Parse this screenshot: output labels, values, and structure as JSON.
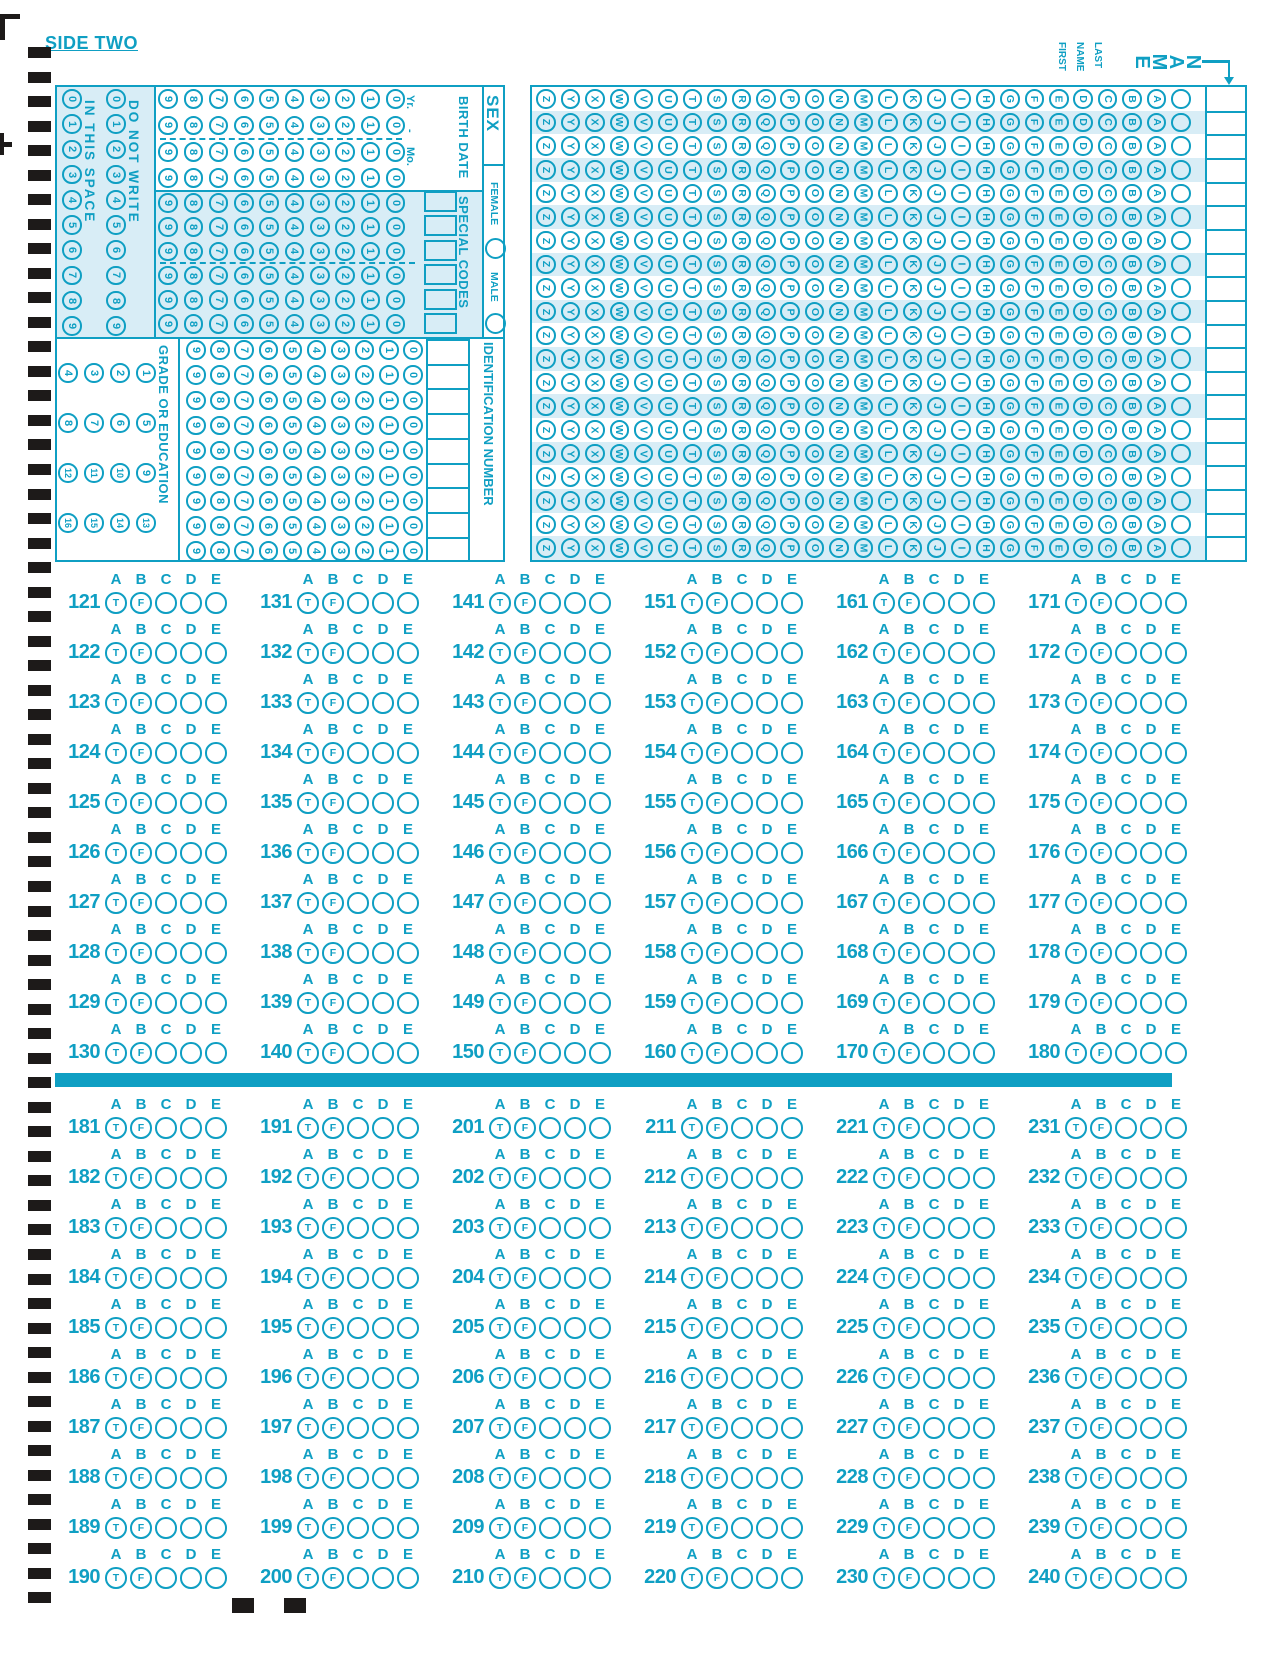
{
  "side_label": "SIDE TWO",
  "colors": {
    "teal": "#0f9fc3",
    "light_blue": "#d8edf6",
    "mark_black": "#1d1a19"
  },
  "top_left": {
    "do_not_write": {
      "text_outer": "DO NOT WRITE",
      "text_inner": "IN THIS SPACE",
      "digits": [
        "0",
        "1",
        "2",
        "3",
        "4",
        "5",
        "6",
        "7",
        "8",
        "9"
      ]
    },
    "grade": {
      "label": "GRADE OR EDUCATION",
      "rows": [
        [
          "4",
          "3",
          "2",
          "1"
        ],
        [
          "8",
          "7",
          "6",
          "5"
        ],
        [
          "12",
          "11",
          "10",
          "9"
        ],
        [
          "16",
          "15",
          "14",
          "13"
        ]
      ]
    },
    "birth_date": {
      "label": "BIRTH DATE",
      "year_label": "Yr.",
      "month_label": "Mo.",
      "separator": "-",
      "row_count": 4,
      "digits_desc": [
        "9",
        "8",
        "7",
        "6",
        "5",
        "4",
        "3",
        "2",
        "1",
        "0"
      ]
    },
    "special_codes": {
      "label": "SPECIAL CODES",
      "row_count": 6,
      "box_count": 6
    },
    "sex": {
      "label": "SEX",
      "options": [
        "FEMALE",
        "MALE"
      ]
    },
    "identification": {
      "label": "IDENTIFICATION NUMBER",
      "row_count": 9,
      "box_count": 9
    }
  },
  "name_grid": {
    "title": "NAME",
    "subtitle_words": [
      "LAST",
      "NAME",
      "FIRST"
    ],
    "row_count": 20,
    "column_letters": [
      "Z",
      "Y",
      "X",
      "W",
      "V",
      "U",
      "T",
      "S",
      "R",
      "Q",
      "P",
      "O",
      "N",
      "M",
      "L",
      "K",
      "J",
      "I",
      "H",
      "G",
      "F",
      "E",
      "D",
      "C",
      "B",
      "A",
      ""
    ]
  },
  "answers": {
    "column_header": [
      "A",
      "B",
      "C",
      "D",
      "E"
    ],
    "bubble_glyphs": [
      "T",
      "F",
      "",
      "",
      ""
    ],
    "questions_per_column": 10,
    "sections": [
      {
        "first": 121,
        "last": 180
      },
      {
        "first": 181,
        "last": 240
      }
    ]
  }
}
